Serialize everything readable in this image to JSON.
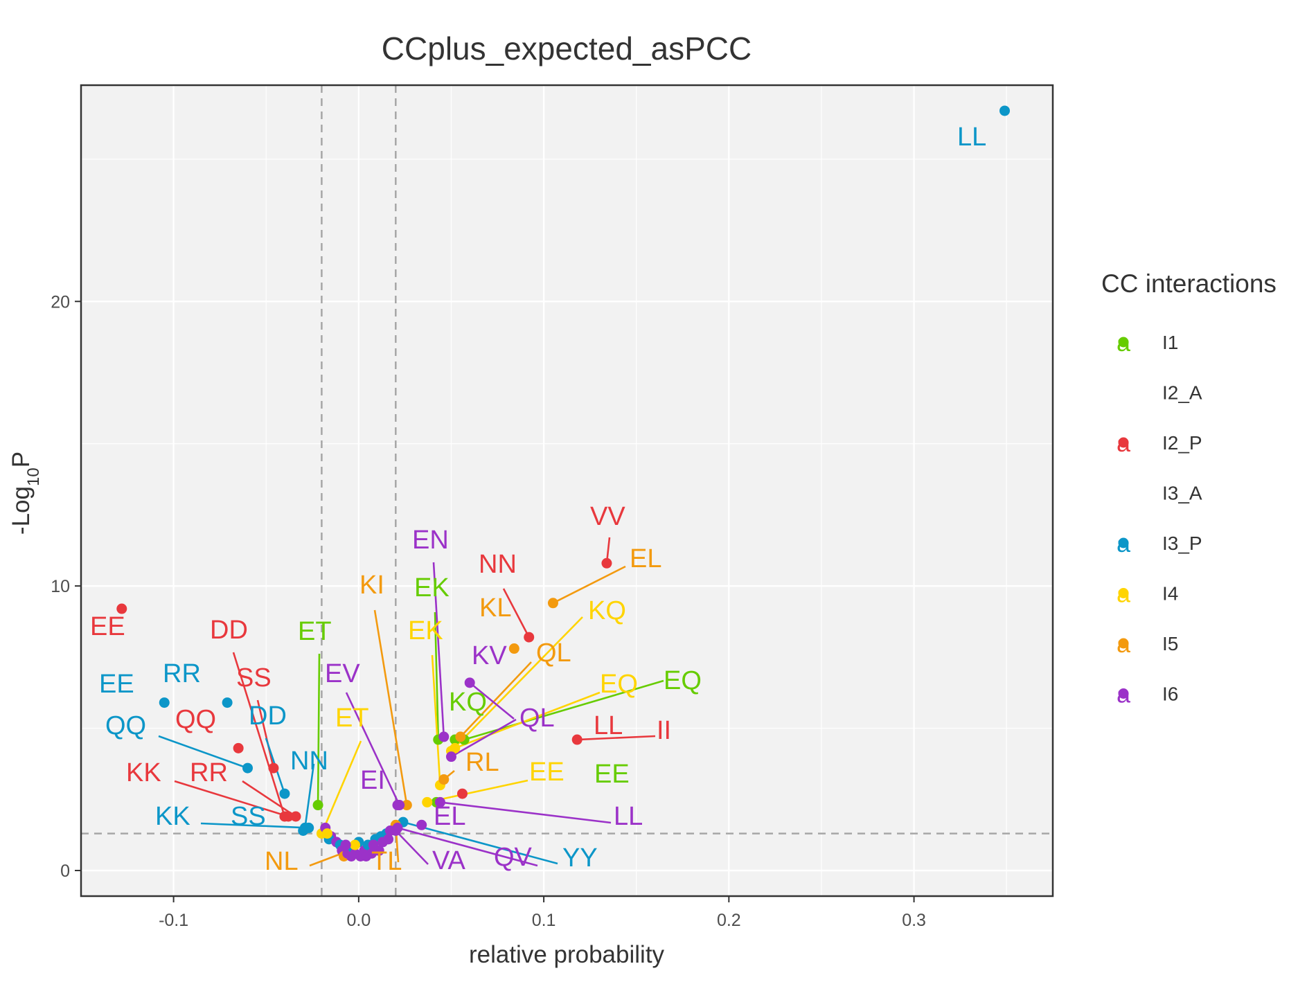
{
  "chart_data": {
    "type": "scatter",
    "title": "CCplus_expected_asPCC",
    "xlabel": "relative probability",
    "ylabel": "-Log10P",
    "xlim": [
      -0.15,
      0.375
    ],
    "ylim": [
      -0.9,
      27.6
    ],
    "x_ticks": [
      "-0.1",
      "0.0",
      "0.1",
      "0.2",
      "0.3"
    ],
    "y_ticks": [
      "0",
      "10",
      "20"
    ],
    "grid": true,
    "threshold_lines": {
      "x": [
        -0.02,
        0.02
      ],
      "y": [
        1.3
      ]
    },
    "legend": {
      "title": "CC interactions",
      "placement": "right"
    },
    "colors": {
      "I1": "#66cc00",
      "I2_A": "#ffffff",
      "I2_P": "#e8383d",
      "I3_A": "#ffffff",
      "I3_P": "#0c96c8",
      "I4": "#ffd400",
      "I5": "#f39a0f",
      "I6": "#9b32c8"
    },
    "series": [
      {
        "name": "I1",
        "points": [
          {
            "x": 0.057,
            "y": 4.6,
            "label": "EQ"
          },
          {
            "x": 0.042,
            "y": 2.4,
            "label": "EE"
          },
          {
            "x": -0.022,
            "y": 2.3,
            "label": "ET"
          },
          {
            "x": 0.043,
            "y": 4.6,
            "label": "EK"
          },
          {
            "x": 0.052,
            "y": 4.6,
            "label": "KQ"
          }
        ]
      },
      {
        "name": "I2_A",
        "points": []
      },
      {
        "name": "I2_P",
        "points": [
          {
            "x": 0.134,
            "y": 10.8,
            "label": "VV"
          },
          {
            "x": 0.092,
            "y": 8.2,
            "label": "NN"
          },
          {
            "x": -0.128,
            "y": 9.2,
            "label": "EE"
          },
          {
            "x": -0.065,
            "y": 4.3,
            "label": "QQ"
          },
          {
            "x": -0.046,
            "y": 3.6,
            "label": "SS"
          },
          {
            "x": -0.04,
            "y": 1.9,
            "label": "DD"
          },
          {
            "x": -0.038,
            "y": 1.9,
            "label": "KK"
          },
          {
            "x": -0.034,
            "y": 1.9,
            "label": "RR"
          },
          {
            "x": 0.118,
            "y": 4.6,
            "label": "LL"
          },
          {
            "x": 0.056,
            "y": 2.7,
            "label": "II"
          }
        ]
      },
      {
        "name": "I3_A",
        "points": []
      },
      {
        "name": "I3_P",
        "points": [
          {
            "x": 0.349,
            "y": 26.7,
            "label": "LL"
          },
          {
            "x": -0.105,
            "y": 5.9,
            "label": "EE"
          },
          {
            "x": -0.071,
            "y": 5.9,
            "label": "RR"
          },
          {
            "x": -0.06,
            "y": 3.6,
            "label": "QQ"
          },
          {
            "x": -0.04,
            "y": 2.7,
            "label": "DD"
          },
          {
            "x": -0.029,
            "y": 1.5,
            "label": "NN"
          },
          {
            "x": -0.027,
            "y": 1.5,
            "label": "KK"
          },
          {
            "x": -0.03,
            "y": 1.4,
            "label": "SS"
          },
          {
            "x": 0.024,
            "y": 1.7,
            "label": "YY"
          }
        ]
      },
      {
        "name": "I4",
        "points": [
          {
            "x": 0.05,
            "y": 4.2,
            "label": "KQ"
          },
          {
            "x": 0.044,
            "y": 3.0,
            "label": "EK"
          },
          {
            "x": 0.052,
            "y": 4.3,
            "label": "EQ"
          },
          {
            "x": 0.037,
            "y": 2.4,
            "label": "EE"
          },
          {
            "x": -0.02,
            "y": 1.3,
            "label": "ET"
          }
        ]
      },
      {
        "name": "I5",
        "points": [
          {
            "x": 0.105,
            "y": 9.4,
            "label": "EL"
          },
          {
            "x": 0.084,
            "y": 7.8,
            "label": "KL"
          },
          {
            "x": 0.026,
            "y": 2.3,
            "label": "KI"
          },
          {
            "x": 0.046,
            "y": 3.2,
            "label": "RL"
          },
          {
            "x": 0.055,
            "y": 4.7,
            "label": "QL"
          },
          {
            "x": -0.005,
            "y": 0.7,
            "label": "NL"
          },
          {
            "x": 0.02,
            "y": 1.6,
            "label": "TL"
          }
        ]
      },
      {
        "name": "I6",
        "points": [
          {
            "x": 0.06,
            "y": 6.6,
            "label": "KV"
          },
          {
            "x": 0.046,
            "y": 4.7,
            "label": "EN"
          },
          {
            "x": 0.05,
            "y": 4.0,
            "label": "QL"
          },
          {
            "x": 0.022,
            "y": 2.3,
            "label": "EV"
          },
          {
            "x": 0.021,
            "y": 2.3,
            "label": "EI"
          },
          {
            "x": 0.034,
            "y": 1.6,
            "label": "EL"
          },
          {
            "x": 0.044,
            "y": 2.4,
            "label": "LL"
          },
          {
            "x": 0.02,
            "y": 1.4,
            "label": "VA"
          },
          {
            "x": 0.021,
            "y": 1.5,
            "label": "QV"
          }
        ]
      }
    ],
    "unlabeled_points": [
      {
        "series": "I6",
        "x": -0.018,
        "y": 1.5
      },
      {
        "series": "I6",
        "x": -0.015,
        "y": 1.2
      },
      {
        "series": "I3_P",
        "x": -0.016,
        "y": 1.1
      },
      {
        "series": "I4",
        "x": -0.017,
        "y": 1.3
      },
      {
        "series": "I6",
        "x": -0.012,
        "y": 1.0
      },
      {
        "series": "I3_P",
        "x": -0.01,
        "y": 0.9
      },
      {
        "series": "I6",
        "x": -0.009,
        "y": 0.7
      },
      {
        "series": "I5",
        "x": -0.008,
        "y": 0.5
      },
      {
        "series": "I6",
        "x": -0.006,
        "y": 0.6
      },
      {
        "series": "I6",
        "x": -0.004,
        "y": 0.5
      },
      {
        "series": "I3_P",
        "x": -0.003,
        "y": 0.8
      },
      {
        "series": "I6",
        "x": -0.002,
        "y": 0.6
      },
      {
        "series": "I3_P",
        "x": 0.0,
        "y": 1.0
      },
      {
        "series": "I6",
        "x": 0.001,
        "y": 0.5
      },
      {
        "series": "I6",
        "x": 0.003,
        "y": 0.7
      },
      {
        "series": "I6",
        "x": 0.004,
        "y": 0.5
      },
      {
        "series": "I3_P",
        "x": 0.005,
        "y": 0.9
      },
      {
        "series": "I6",
        "x": 0.007,
        "y": 0.6
      },
      {
        "series": "I3_P",
        "x": 0.009,
        "y": 1.1
      },
      {
        "series": "I6",
        "x": 0.011,
        "y": 0.7
      },
      {
        "series": "I3_P",
        "x": 0.012,
        "y": 1.2
      },
      {
        "series": "I6",
        "x": 0.013,
        "y": 1.0
      },
      {
        "series": "I3_P",
        "x": 0.015,
        "y": 1.3
      },
      {
        "series": "I6",
        "x": 0.016,
        "y": 1.1
      },
      {
        "series": "I6",
        "x": 0.017,
        "y": 1.4
      },
      {
        "series": "I4",
        "x": -0.002,
        "y": 0.9
      },
      {
        "series": "I6",
        "x": -0.007,
        "y": 0.9
      },
      {
        "series": "I6",
        "x": 0.008,
        "y": 0.9
      }
    ]
  }
}
